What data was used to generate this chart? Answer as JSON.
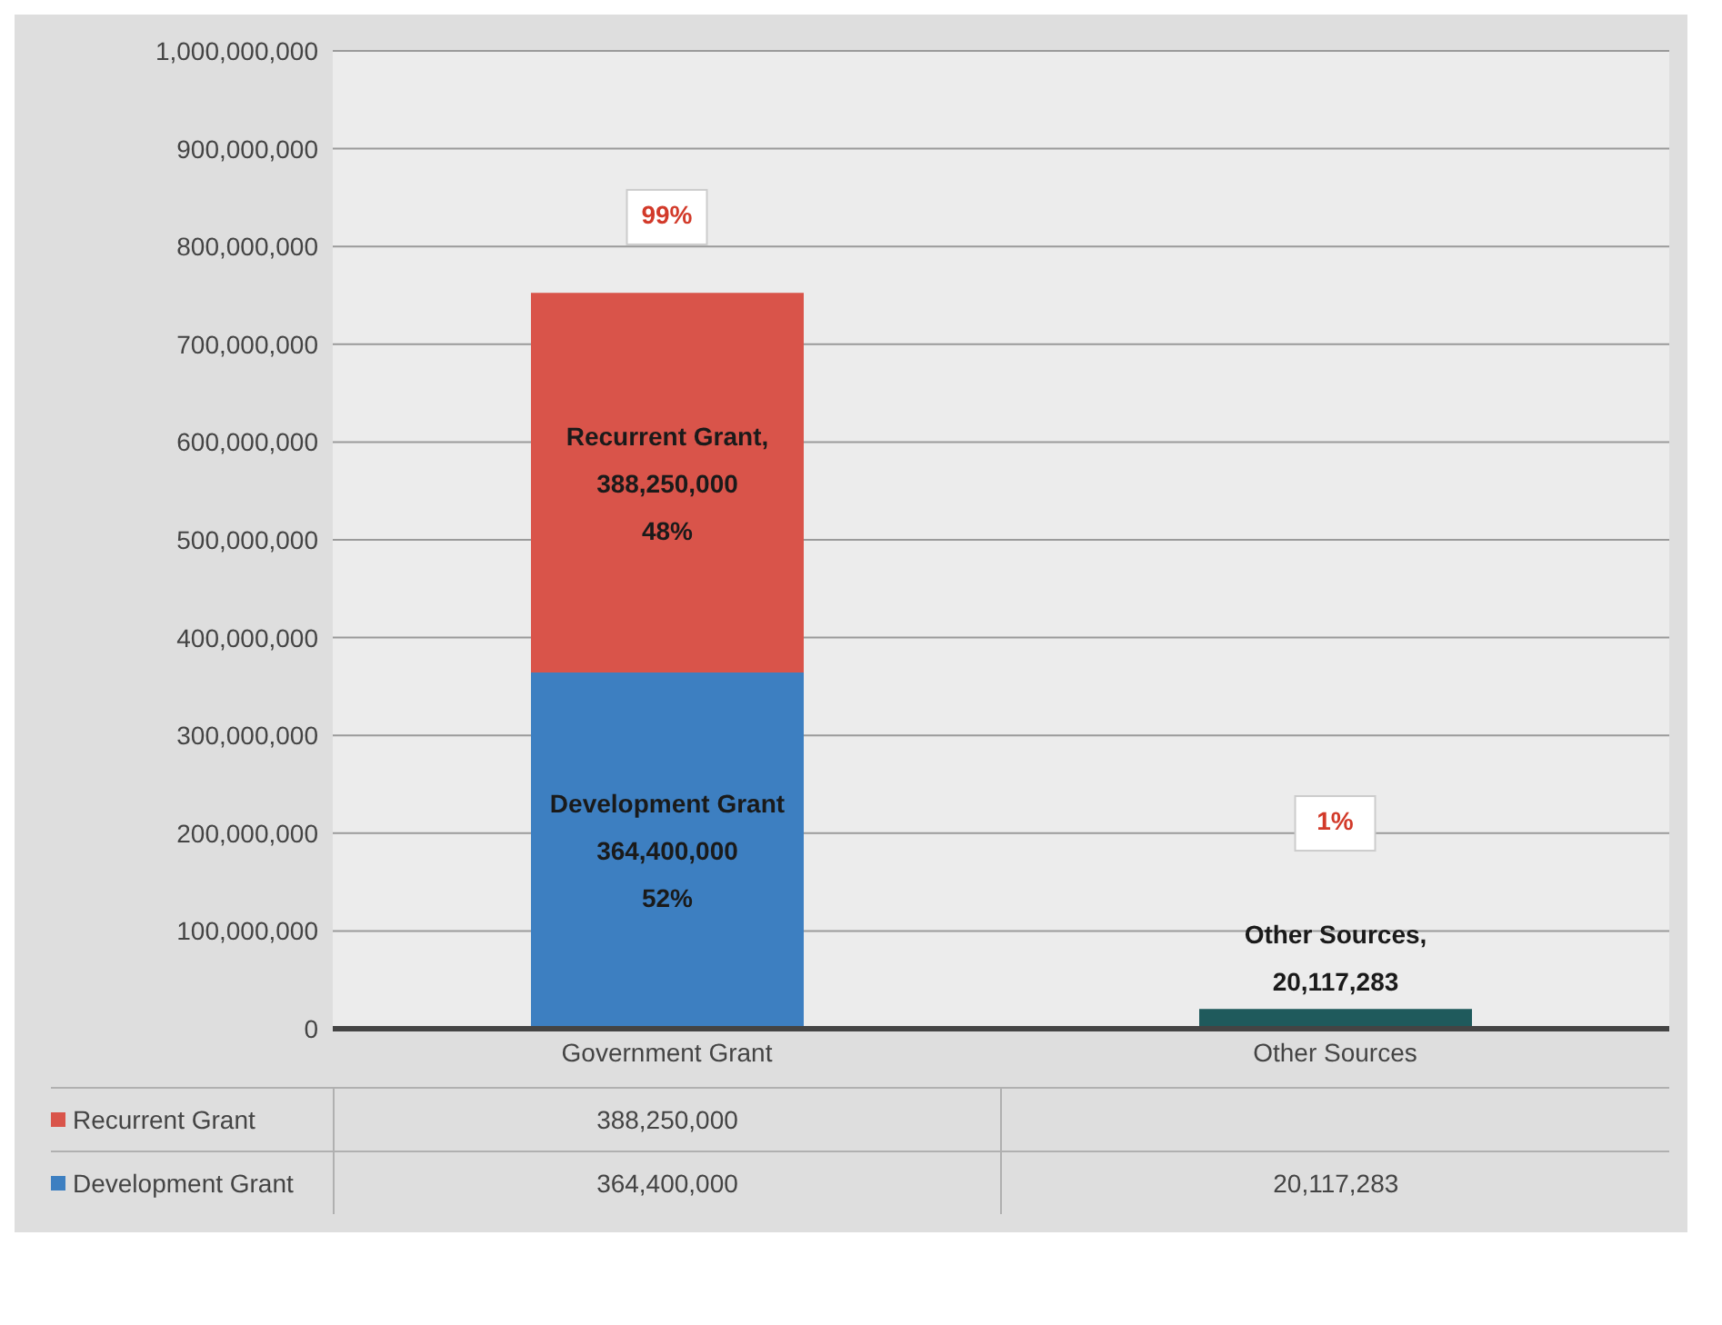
{
  "chart_data": {
    "type": "bar",
    "stacked": true,
    "categories": [
      "Government Grant",
      "Other Sources"
    ],
    "series": [
      {
        "name": "Development Grant",
        "color": "#3d7fc1",
        "colors": [
          "#3d7fc1",
          "#1f5a5c"
        ],
        "values": [
          364400000,
          20117283
        ],
        "value_labels": [
          "Development Grant\n364,400,000\n52%",
          "Other Sources,\n20,117,283"
        ]
      },
      {
        "name": "Recurrent Grant",
        "color": "#d9544a",
        "values": [
          388250000,
          null
        ],
        "value_labels": [
          "Recurrent Grant,\n388,250,000\n48%",
          null
        ]
      }
    ],
    "ylim": [
      0,
      1000000000
    ],
    "yticks": [
      {
        "value": 0,
        "label": "0"
      },
      {
        "value": 100000000,
        "label": "100,000,000"
      },
      {
        "value": 200000000,
        "label": "200,000,000"
      },
      {
        "value": 300000000,
        "label": "300,000,000"
      },
      {
        "value": 400000000,
        "label": "400,000,000"
      },
      {
        "value": 500000000,
        "label": "500,000,000"
      },
      {
        "value": 600000000,
        "label": "600,000,000"
      },
      {
        "value": 700000000,
        "label": "700,000,000"
      },
      {
        "value": 800000000,
        "label": "800,000,000"
      },
      {
        "value": 900000000,
        "label": "900,000,000"
      },
      {
        "value": 1000000000,
        "label": "1,000,000,000"
      }
    ],
    "grid": "y",
    "legend": "bottom",
    "annotations": [
      "388,250,000",
      "364,400,000",
      "20,117,283",
      {
        "text": "99%",
        "x": "Government Grant",
        "y": 830000000
      },
      {
        "text": "1%",
        "x": "Other Sources",
        "y": 210000000
      }
    ]
  }
}
